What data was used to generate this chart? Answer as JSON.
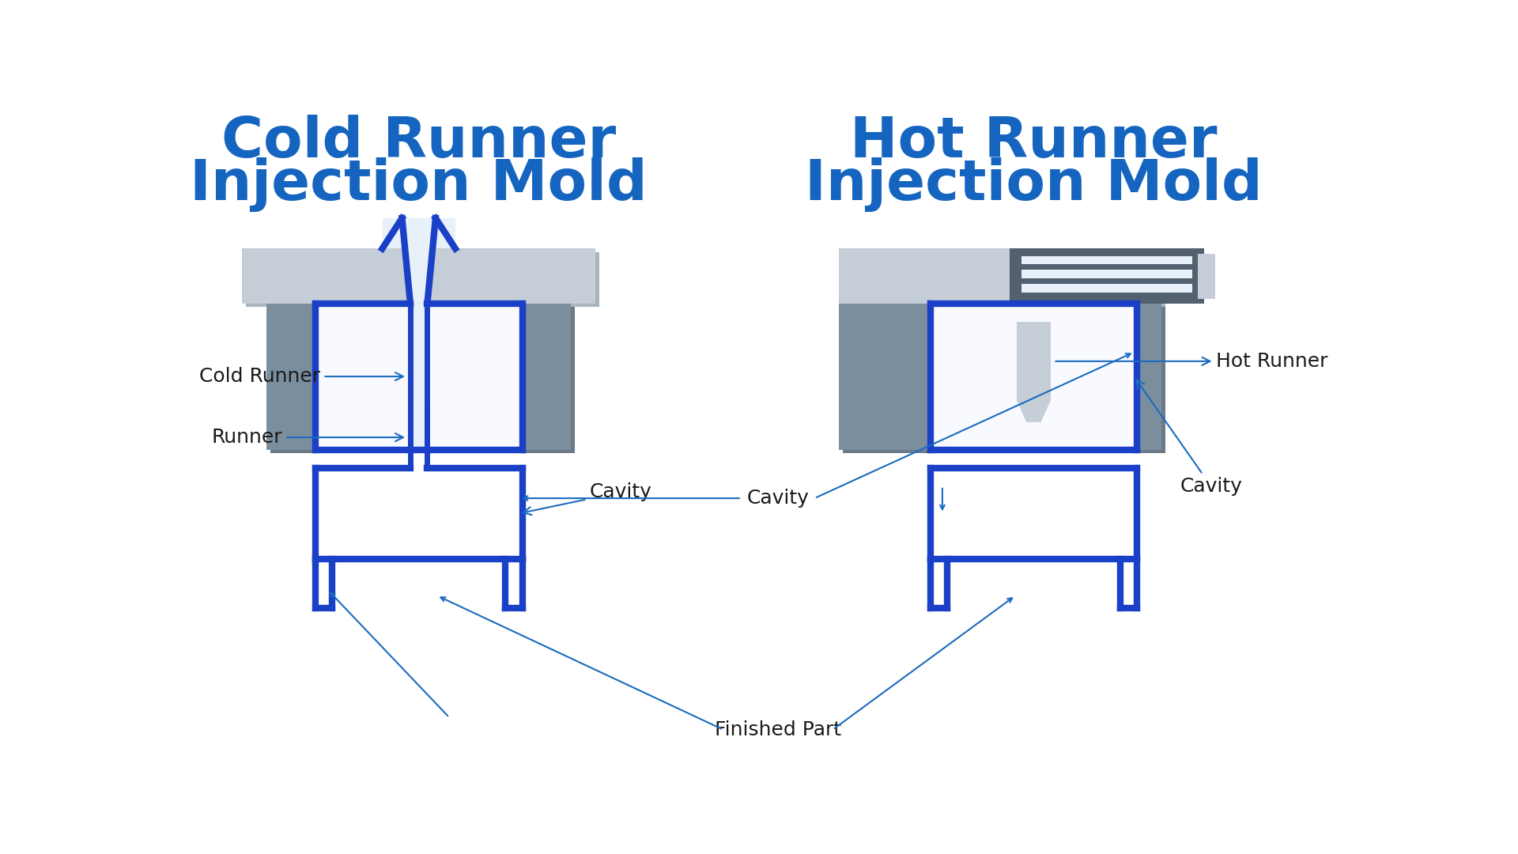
{
  "bg_color": "#ffffff",
  "title_color": "#1565c0",
  "arrow_color": "#1a6bbf",
  "label_color": "#1a1a1a",
  "gray_light": "#c5cdd6",
  "gray_mid": "#7b8e9d",
  "gray_dark": "#526070",
  "blue_main": "#1a40c8",
  "blue_dark": "#1030a0",
  "white_fill": "#f8faff",
  "sprue_white": "#e8f0fa",
  "left_title_line1": "Cold Runner",
  "left_title_line2": "Injection Mold",
  "right_title_line1": "Hot Runner",
  "right_title_line2": "Injection Mold",
  "label_cold_runner": "Cold Runner",
  "label_hot_runner": "Hot Runner",
  "label_cavity": "Cavity",
  "label_runner": "Runner",
  "label_finished": "Finished Part"
}
